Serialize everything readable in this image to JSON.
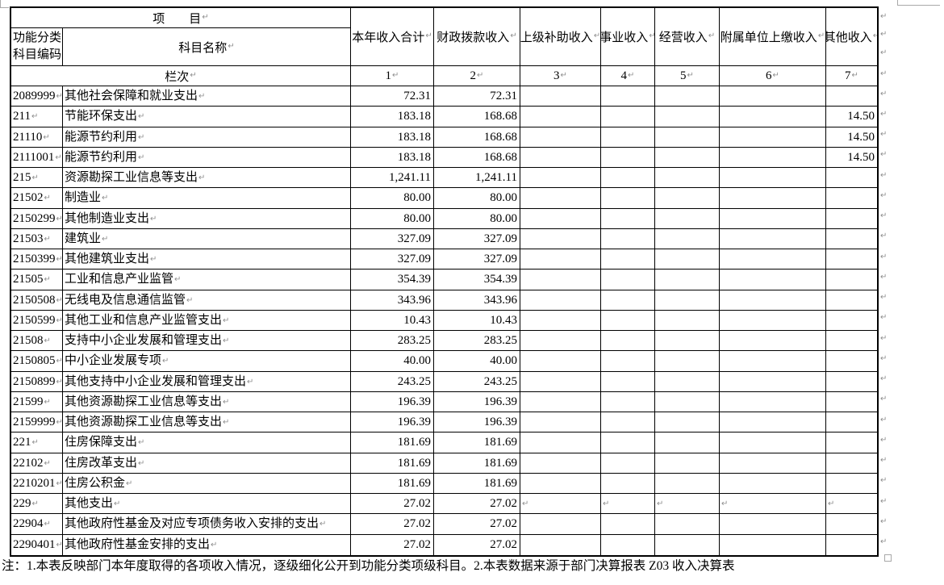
{
  "icons": {
    "paragraph_mark": "↵"
  },
  "colors": {
    "border": "#000000",
    "text": "#000000",
    "formatting_mark": "#8f8f8f"
  },
  "header": {
    "project_label": "项　　目",
    "code_label_lines": [
      "功能分类",
      "科目编码"
    ],
    "subject_name_label": "科目名称",
    "column_index_label": "栏次",
    "value_columns": [
      "本年收入合计",
      "财政拨款收入",
      "上级补助收入",
      "事业收入",
      "经营收入",
      "附属单位上缴收入",
      "其他收入"
    ],
    "column_numbers": [
      "1",
      "2",
      "3",
      "4",
      "5",
      "6",
      "7"
    ]
  },
  "rows": [
    {
      "code": "2089999",
      "name": "其他社会保障和就业支出",
      "values": [
        "72.31",
        "72.31",
        "",
        "",
        "",
        "",
        ""
      ]
    },
    {
      "code": "211",
      "name": "节能环保支出",
      "values": [
        "183.18",
        "168.68",
        "",
        "",
        "",
        "",
        "14.50"
      ]
    },
    {
      "code": "21110",
      "name": "能源节约利用",
      "values": [
        "183.18",
        "168.68",
        "",
        "",
        "",
        "",
        "14.50"
      ]
    },
    {
      "code": "2111001",
      "name": "能源节约利用",
      "values": [
        "183.18",
        "168.68",
        "",
        "",
        "",
        "",
        "14.50"
      ]
    },
    {
      "code": "215",
      "name": "资源勘探工业信息等支出",
      "values": [
        "1,241.11",
        "1,241.11",
        "",
        "",
        "",
        "",
        ""
      ]
    },
    {
      "code": "21502",
      "name": "制造业",
      "values": [
        "80.00",
        "80.00",
        "",
        "",
        "",
        "",
        ""
      ]
    },
    {
      "code": "2150299",
      "name": "其他制造业支出",
      "values": [
        "80.00",
        "80.00",
        "",
        "",
        "",
        "",
        ""
      ]
    },
    {
      "code": "21503",
      "name": "建筑业",
      "values": [
        "327.09",
        "327.09",
        "",
        "",
        "",
        "",
        ""
      ]
    },
    {
      "code": "2150399",
      "name": "其他建筑业支出",
      "values": [
        "327.09",
        "327.09",
        "",
        "",
        "",
        "",
        ""
      ]
    },
    {
      "code": "21505",
      "name": "工业和信息产业监管",
      "values": [
        "354.39",
        "354.39",
        "",
        "",
        "",
        "",
        ""
      ]
    },
    {
      "code": "2150508",
      "name": "无线电及信息通信监管",
      "values": [
        "343.96",
        "343.96",
        "",
        "",
        "",
        "",
        ""
      ]
    },
    {
      "code": "2150599",
      "name": "其他工业和信息产业监管支出",
      "values": [
        "10.43",
        "10.43",
        "",
        "",
        "",
        "",
        ""
      ]
    },
    {
      "code": "21508",
      "name": "支持中小企业发展和管理支出",
      "values": [
        "283.25",
        "283.25",
        "",
        "",
        "",
        "",
        ""
      ]
    },
    {
      "code": "2150805",
      "name": "中小企业发展专项",
      "values": [
        "40.00",
        "40.00",
        "",
        "",
        "",
        "",
        ""
      ]
    },
    {
      "code": "2150899",
      "name": "其他支持中小企业发展和管理支出",
      "values": [
        "243.25",
        "243.25",
        "",
        "",
        "",
        "",
        ""
      ]
    },
    {
      "code": "21599",
      "name": "其他资源勘探工业信息等支出",
      "values": [
        "196.39",
        "196.39",
        "",
        "",
        "",
        "",
        ""
      ]
    },
    {
      "code": "2159999",
      "name": "其他资源勘探工业信息等支出",
      "values": [
        "196.39",
        "196.39",
        "",
        "",
        "",
        "",
        ""
      ]
    },
    {
      "code": "221",
      "name": "住房保障支出",
      "values": [
        "181.69",
        "181.69",
        "",
        "",
        "",
        "",
        ""
      ]
    },
    {
      "code": "22102",
      "name": "住房改革支出",
      "values": [
        "181.69",
        "181.69",
        "",
        "",
        "",
        "",
        ""
      ]
    },
    {
      "code": "2210201",
      "name": "住房公积金",
      "values": [
        "181.69",
        "181.69",
        "",
        "",
        "",
        "",
        ""
      ]
    },
    {
      "code": "229",
      "name": "其他支出",
      "values": [
        "27.02",
        "27.02",
        "",
        "",
        "",
        "",
        ""
      ],
      "empty_marks": true
    },
    {
      "code": "22904",
      "name": "其他政府性基金及对应专项债务收入安排的支出",
      "values": [
        "27.02",
        "27.02",
        "",
        "",
        "",
        "",
        ""
      ]
    },
    {
      "code": "2290401",
      "name": "其他政府性基金安排的支出",
      "values": [
        "27.02",
        "27.02",
        "",
        "",
        "",
        "",
        ""
      ]
    }
  ],
  "note": "注：1.本表反映部门本年度取得的各项收入情况，逐级细化公开到功能分类项级科目。2.本表数据来源于部门决算报表 Z03 收入决算表"
}
